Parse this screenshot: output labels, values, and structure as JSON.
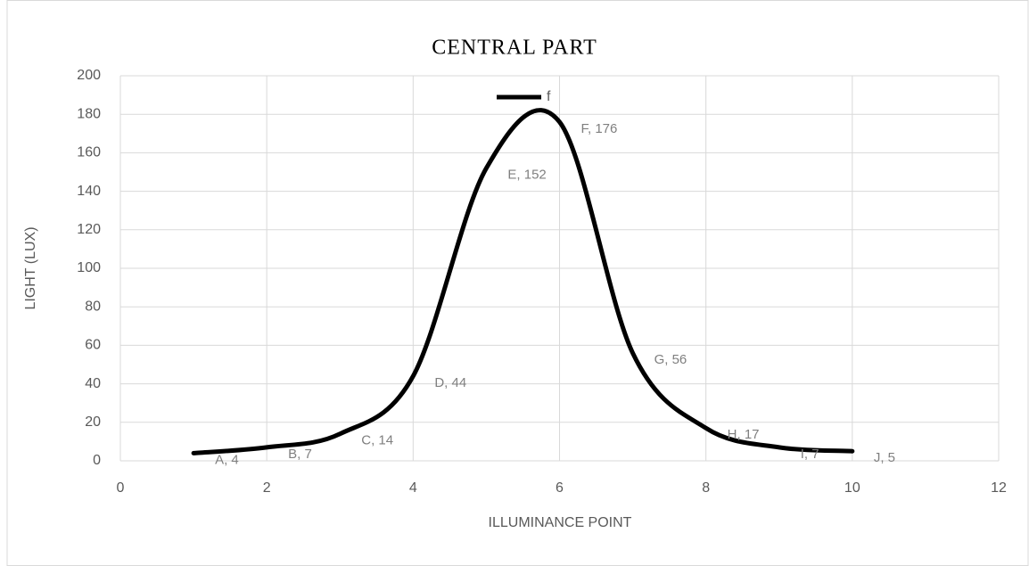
{
  "chart_data": {
    "type": "line",
    "title": "CENTRAL PART",
    "x_label": "ILLUMINANCE POINT",
    "y_label": "LIGHT (LUX)",
    "x": [
      1,
      2,
      3,
      4,
      5,
      6,
      7,
      8,
      9,
      10
    ],
    "series": [
      {
        "name": "f",
        "color": "#000000",
        "values": [
          4,
          7,
          14,
          44,
          152,
          176,
          56,
          17,
          7,
          5
        ],
        "value_labels": [
          "A, 4",
          "B, 7",
          "C, 14",
          "D, 44",
          "E, 152",
          "F, 176",
          "G, 56",
          "H, 17",
          "I, 7",
          "J, 5"
        ]
      }
    ],
    "xlim": [
      0,
      12
    ],
    "xticks": [
      0,
      2,
      4,
      6,
      8,
      10,
      12
    ],
    "ylim": [
      0,
      200
    ],
    "yticks": [
      0,
      20,
      40,
      60,
      80,
      100,
      120,
      140,
      160,
      180,
      200
    ],
    "grid": true,
    "smooth": true,
    "legend": "top"
  }
}
